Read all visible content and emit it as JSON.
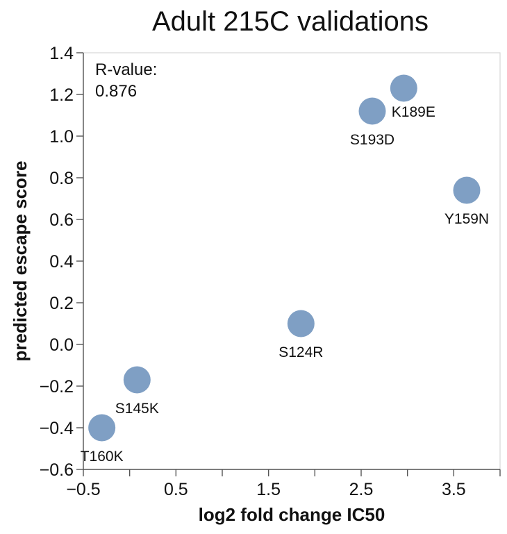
{
  "chart_data": {
    "type": "scatter",
    "title": "Adult 215C validations",
    "xlabel": "log2 fold change IC50",
    "ylabel": "predicted escape score",
    "xlim": [
      -0.5,
      4.0
    ],
    "ylim": [
      -0.6,
      1.4
    ],
    "x_ticks": [
      -0.5,
      0.5,
      1.5,
      2.5,
      3.5
    ],
    "x_tick_labels": [
      "−0.5",
      "0.5",
      "1.5",
      "2.5",
      "3.5"
    ],
    "y_ticks": [
      -0.6,
      -0.4,
      -0.2,
      0.0,
      0.2,
      0.4,
      0.6,
      0.8,
      1.0,
      1.2,
      1.4
    ],
    "y_tick_labels": [
      "−0.6",
      "−0.4",
      "−0.2",
      "0.0",
      "0.2",
      "0.4",
      "0.6",
      "0.8",
      "1.0",
      "1.2",
      "1.4"
    ],
    "grid": false,
    "point_color": "#7f9fc4",
    "annotation": {
      "line1": "R-value:",
      "line2": "0.876"
    },
    "points": [
      {
        "label": "T160K",
        "x": -0.3,
        "y": -0.4,
        "label_pos": "below"
      },
      {
        "label": "S145K",
        "x": 0.08,
        "y": -0.17,
        "label_pos": "below"
      },
      {
        "label": "S124R",
        "x": 1.85,
        "y": 0.1,
        "label_pos": "below"
      },
      {
        "label": "S193D",
        "x": 2.62,
        "y": 1.12,
        "label_pos": "below"
      },
      {
        "label": "K189E",
        "x": 2.96,
        "y": 1.23,
        "label_pos": "below-right"
      },
      {
        "label": "Y159N",
        "x": 3.64,
        "y": 0.74,
        "label_pos": "below"
      }
    ]
  }
}
